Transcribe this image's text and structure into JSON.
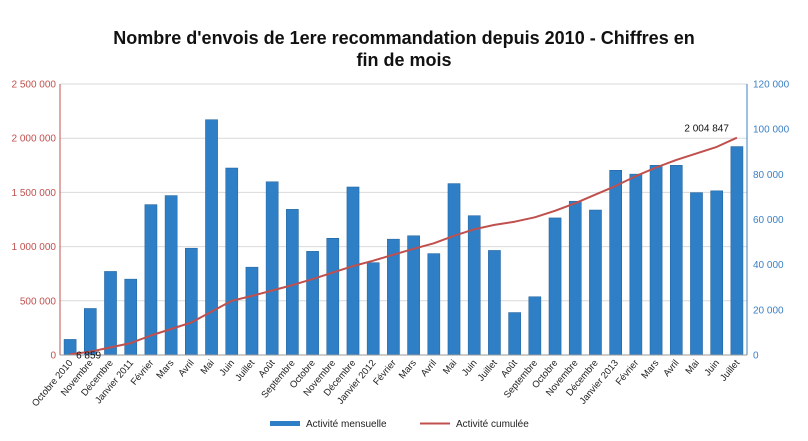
{
  "chart_data": {
    "type": "bar",
    "title_lines": [
      "Nombre d'envois de 1ere recommandation depuis 2010 - Chiffres en",
      "fin de mois"
    ],
    "categories": [
      "Octobre 2010",
      "Novembre",
      "Décembre",
      "Janvier 2011",
      "Février",
      "Mars",
      "Avril",
      "Mai",
      "Juin",
      "Juillet",
      "Août",
      "Septembre",
      "Octobre",
      "Novembre",
      "Décembre",
      "Janvier 2012",
      "Février",
      "Mars",
      "Avril",
      "Mai",
      "Juin",
      "Juillet",
      "Août",
      "Septembre",
      "Octobre",
      "Novembre",
      "Décembre",
      "Janvier 2013",
      "Février",
      "Mars",
      "Avril",
      "Mai",
      "Juin",
      "Juillet"
    ],
    "series": [
      {
        "name": "Activité mensuelle",
        "type": "bar",
        "axis": "right",
        "color": "#2e7fc6",
        "values": [
          6900,
          20600,
          37000,
          33600,
          66600,
          70600,
          47300,
          104200,
          82800,
          38900,
          76700,
          64500,
          45900,
          51700,
          74400,
          40900,
          51300,
          52800,
          44900,
          75900,
          61700,
          46300,
          18800,
          25800,
          60700,
          68100,
          64200,
          81800,
          80100,
          84000,
          84000,
          71900,
          72700,
          92300
        ]
      },
      {
        "name": "Activité cumulée",
        "type": "line",
        "axis": "left",
        "color": "#c0504d",
        "values": [
          6859,
          30000,
          70000,
          110000,
          180000,
          240000,
          300000,
          400000,
          500000,
          545000,
          595000,
          645000,
          700000,
          760000,
          820000,
          870000,
          925000,
          980000,
          1030000,
          1100000,
          1160000,
          1200000,
          1230000,
          1270000,
          1330000,
          1400000,
          1480000,
          1560000,
          1650000,
          1730000,
          1800000,
          1860000,
          1920000,
          2004847
        ]
      }
    ],
    "y_left": {
      "min": 0,
      "max": 2500000,
      "ticks": [
        "0",
        "500 000",
        "1 000 000",
        "1 500 000",
        "2 000 000",
        "2 500 000"
      ],
      "color": "#c0504d"
    },
    "y_right": {
      "min": 0,
      "max": 120000,
      "ticks": [
        "0",
        "20 000",
        "40 000",
        "60 000",
        "80 000",
        "100 000",
        "120 000"
      ],
      "color": "#3b7fc4"
    },
    "annotations": [
      {
        "text": "6 859",
        "series_index": 1,
        "point_index": 0
      },
      {
        "text": "2 004 847",
        "series_index": 1,
        "point_index": 33
      }
    ],
    "grid": true,
    "legend": {
      "placement": "bottom",
      "entries": [
        "Activité mensuelle",
        "Activité cumulée"
      ]
    }
  }
}
